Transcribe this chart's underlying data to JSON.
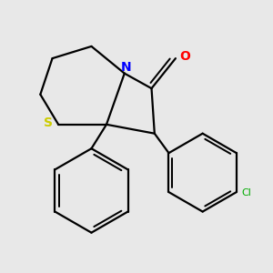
{
  "background_color": "#e8e8e8",
  "atom_colors": {
    "S": "#cccc00",
    "N": "#0000ff",
    "O": "#ff0000",
    "Cl": "#00aa00",
    "C": "#000000"
  },
  "line_color": "#000000",
  "line_width": 1.6,
  "figsize": [
    3.0,
    3.0
  ],
  "dpi": 100
}
